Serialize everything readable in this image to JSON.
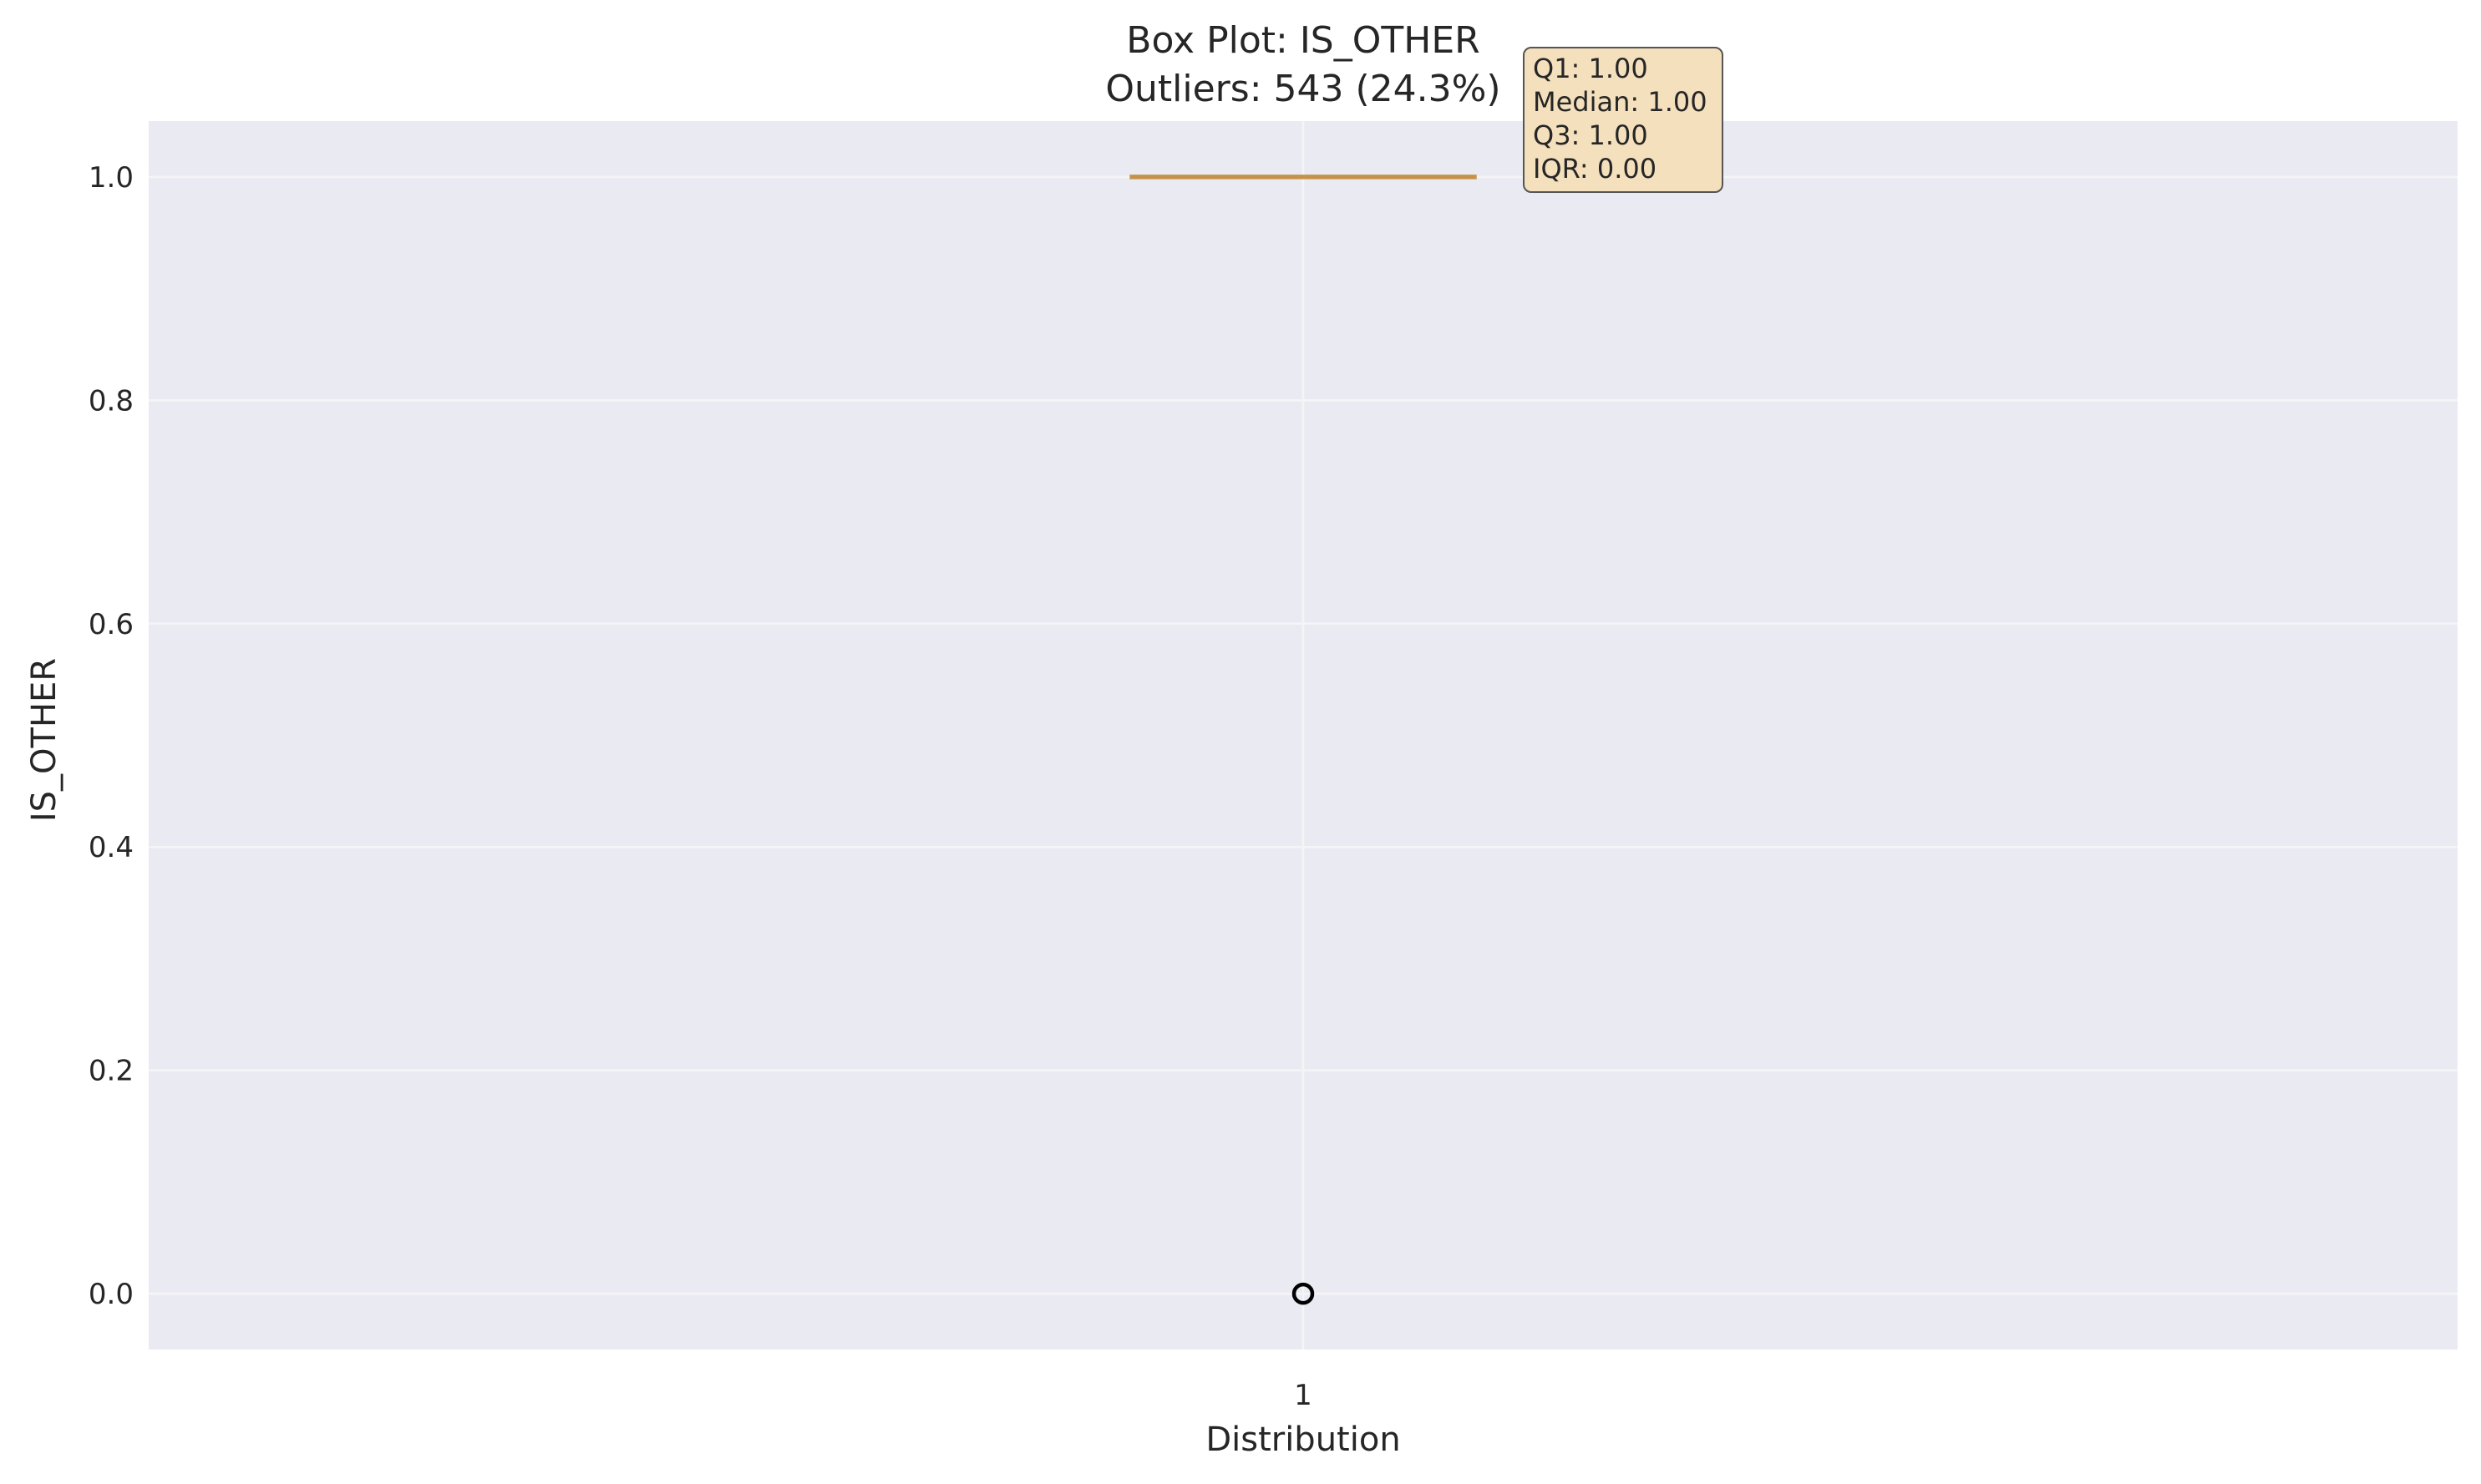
{
  "chart_data": {
    "type": "box",
    "title": "Box Plot: IS_OTHER",
    "subtitle": "Outliers: 543 (24.3%)",
    "xlabel": "Distribution",
    "ylabel": "IS_OTHER",
    "categories": [
      "1"
    ],
    "ylim": [
      -0.05,
      1.05
    ],
    "yticks": [
      0.0,
      0.2,
      0.4,
      0.6,
      0.8,
      1.0
    ],
    "ytick_labels": [
      "0.0",
      "0.2",
      "0.4",
      "0.6",
      "0.8",
      "1.0"
    ],
    "grid": true,
    "box": {
      "q1": 1.0,
      "median": 1.0,
      "q3": 1.0,
      "whisker_low": 1.0,
      "whisker_high": 1.0,
      "outliers": [
        0.0
      ]
    },
    "stats_lines": [
      "Q1: 1.00",
      "Median: 1.00",
      "Q3: 1.00",
      "IQR: 0.00"
    ],
    "colors": {
      "plot_bg": "#eaeaf2",
      "grid": "#f5f5f8",
      "box_line": "#c8964b",
      "outlier": "#000000",
      "stats_bg": "#f5e0bd",
      "stats_border": "#555555"
    }
  }
}
